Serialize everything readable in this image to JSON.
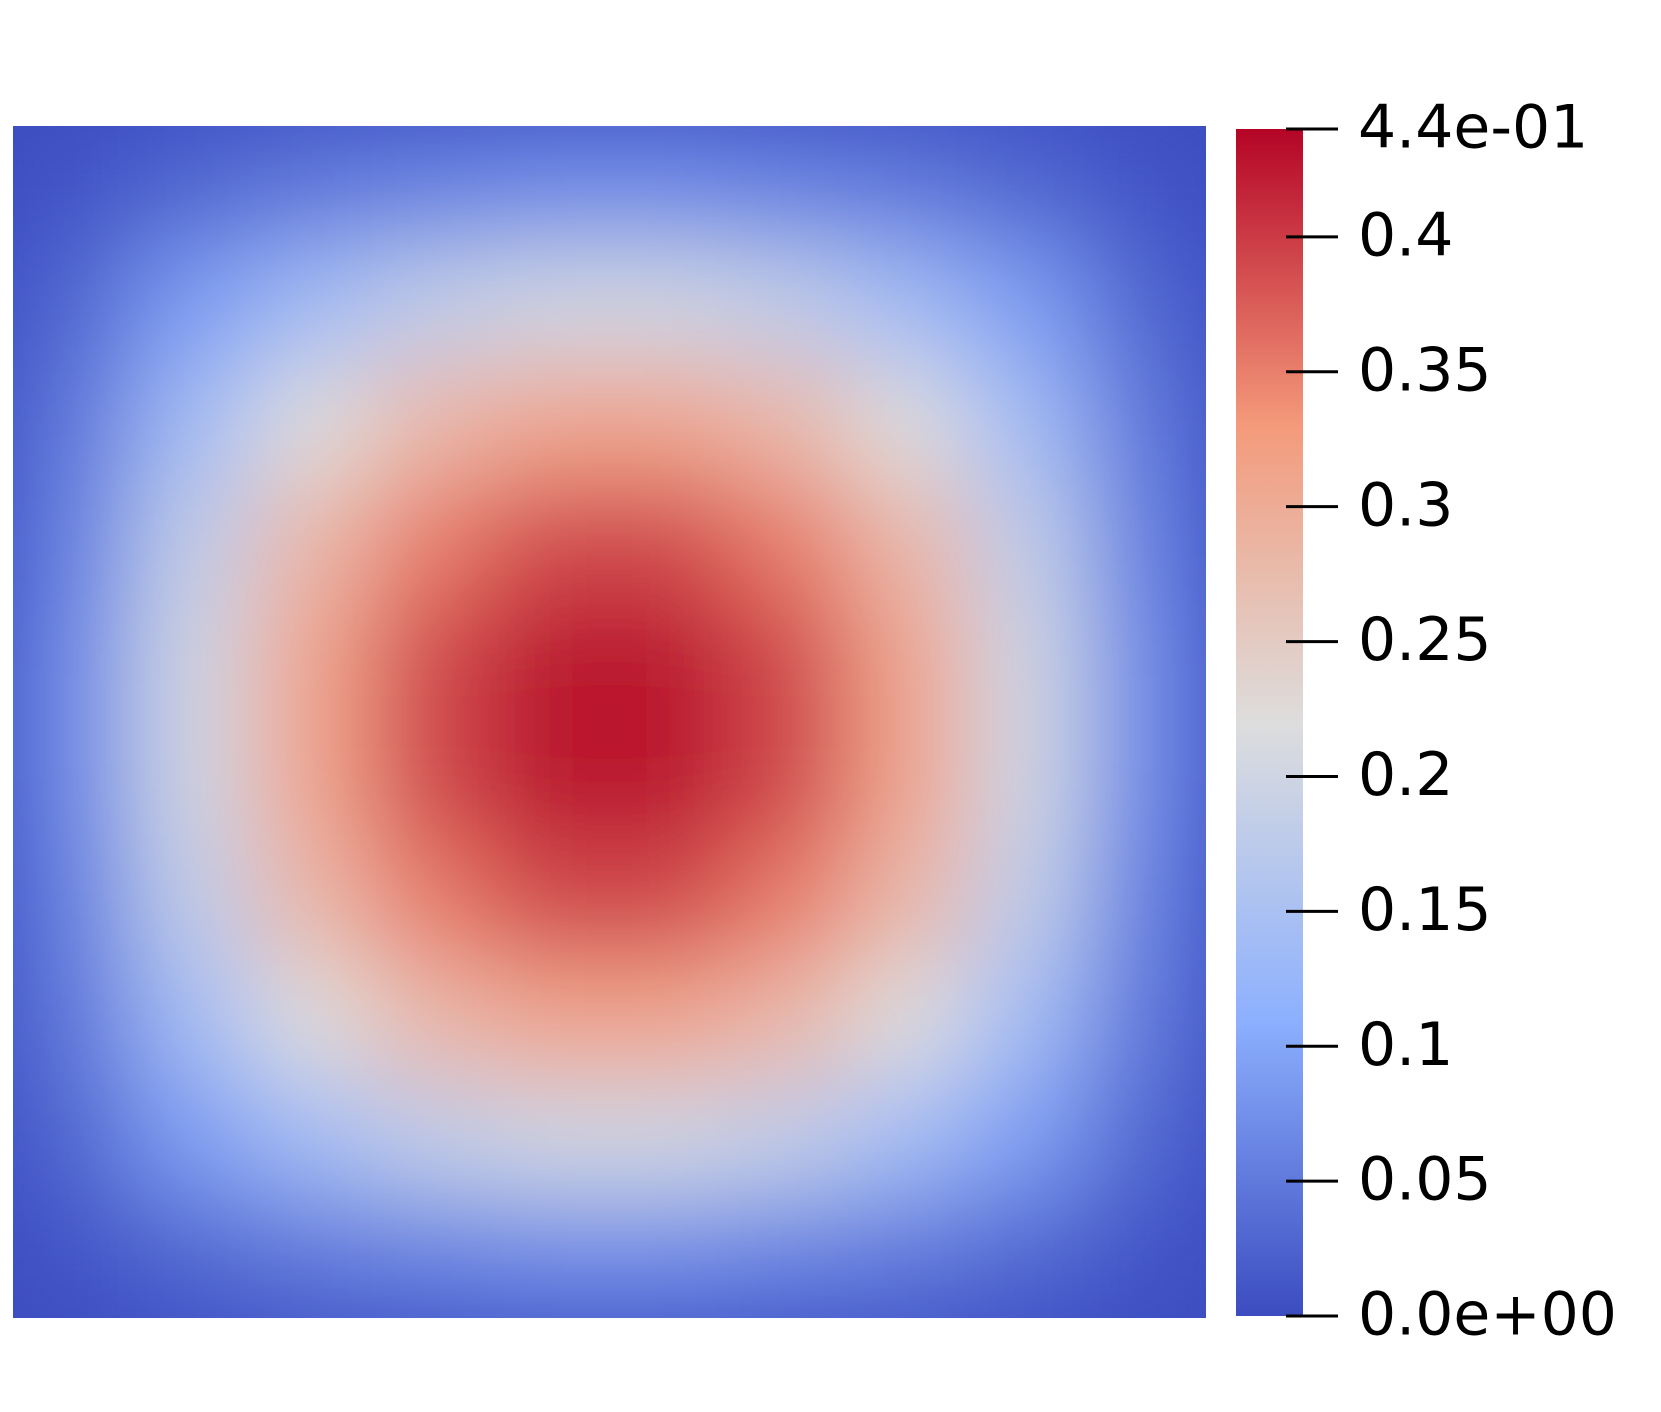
{
  "chart_data": {
    "type": "heatmap",
    "values": [
      [
        0.01,
        0.03,
        0.05,
        0.06,
        0.07,
        0.07,
        0.06,
        0.05,
        0.03,
        0.01
      ],
      [
        0.03,
        0.09,
        0.14,
        0.18,
        0.2,
        0.2,
        0.18,
        0.14,
        0.09,
        0.03
      ],
      [
        0.05,
        0.14,
        0.22,
        0.28,
        0.31,
        0.31,
        0.28,
        0.22,
        0.14,
        0.05
      ],
      [
        0.06,
        0.18,
        0.28,
        0.35,
        0.39,
        0.39,
        0.35,
        0.28,
        0.18,
        0.06
      ],
      [
        0.07,
        0.2,
        0.31,
        0.39,
        0.43,
        0.43,
        0.39,
        0.31,
        0.2,
        0.07
      ],
      [
        0.07,
        0.2,
        0.31,
        0.39,
        0.43,
        0.43,
        0.39,
        0.31,
        0.2,
        0.07
      ],
      [
        0.06,
        0.18,
        0.28,
        0.35,
        0.39,
        0.39,
        0.35,
        0.28,
        0.18,
        0.06
      ],
      [
        0.05,
        0.14,
        0.22,
        0.28,
        0.31,
        0.31,
        0.28,
        0.22,
        0.14,
        0.05
      ],
      [
        0.03,
        0.09,
        0.14,
        0.18,
        0.2,
        0.2,
        0.18,
        0.14,
        0.09,
        0.03
      ],
      [
        0.01,
        0.03,
        0.05,
        0.06,
        0.07,
        0.07,
        0.06,
        0.05,
        0.03,
        0.01
      ]
    ],
    "colormap": [
      "#3b4cc0",
      "#8db0fe",
      "#dddddd",
      "#f49a7b",
      "#b40426"
    ],
    "clim": [
      0,
      0.44
    ],
    "cticks": [
      {
        "value": 0.44,
        "label": "4.4e-01"
      },
      0.4,
      0.35,
      0.3,
      0.25,
      0.2,
      0.15,
      0.1,
      0.05,
      {
        "value": 0,
        "label": "0.0e+00"
      }
    ]
  }
}
